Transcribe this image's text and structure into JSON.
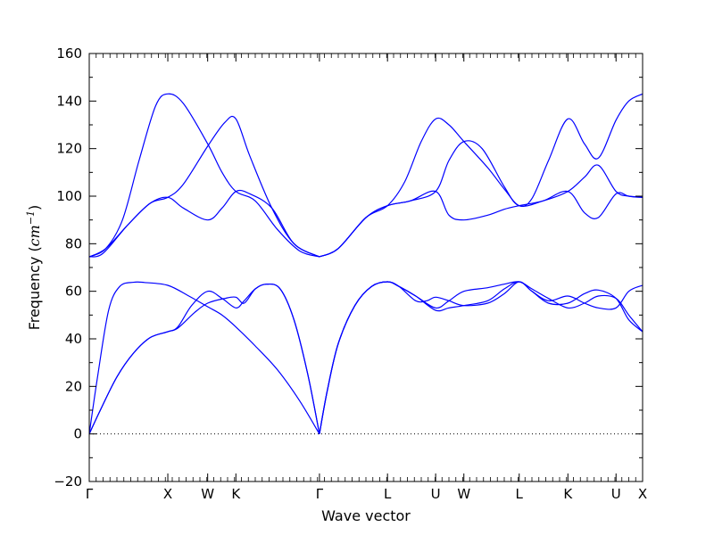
{
  "chart_data": {
    "type": "line",
    "title": "",
    "xlabel": "Wave vector",
    "ylabel_text": "Frequency (",
    "ylabel_unit": "cm",
    "ylabel_exp": "−1",
    "ylabel_close": ")",
    "ylim": [
      -20,
      160
    ],
    "y_ticks": [
      -20,
      0,
      20,
      40,
      60,
      80,
      100,
      120,
      140,
      160
    ],
    "grid": false,
    "zero_line": true,
    "xlim": [
      0,
      10
    ],
    "high_symmetry_points": [
      {
        "label": "Γ",
        "x": 0.0
      },
      {
        "label": "X",
        "x": 1.42
      },
      {
        "label": "W",
        "x": 2.14
      },
      {
        "label": "K",
        "x": 2.65
      },
      {
        "label": "Γ",
        "x": 4.16
      },
      {
        "label": "L",
        "x": 5.39
      },
      {
        "label": "U",
        "x": 6.26
      },
      {
        "label": "W",
        "x": 6.77
      },
      {
        "label": "L",
        "x": 7.77
      },
      {
        "label": "K",
        "x": 8.65
      },
      {
        "label": "U",
        "x": 9.52
      },
      {
        "label": "X",
        "x": 10.0
      }
    ],
    "series": [
      {
        "points": [
          [
            0,
            0
          ],
          [
            0.15,
            24
          ],
          [
            0.35,
            52
          ],
          [
            0.55,
            62
          ],
          [
            0.8,
            63.8
          ],
          [
            1.0,
            63.7
          ],
          [
            1.42,
            62.5
          ],
          [
            1.8,
            58
          ],
          [
            2.14,
            53.5
          ],
          [
            2.4,
            50
          ],
          [
            2.65,
            45
          ],
          [
            3.0,
            37
          ],
          [
            3.4,
            27
          ],
          [
            3.8,
            14
          ],
          [
            4.16,
            0
          ]
        ]
      },
      {
        "points": [
          [
            0,
            0
          ],
          [
            0.2,
            10
          ],
          [
            0.5,
            24
          ],
          [
            0.8,
            34
          ],
          [
            1.1,
            40.5
          ],
          [
            1.42,
            43
          ],
          [
            1.6,
            44.5
          ],
          [
            1.9,
            51
          ],
          [
            2.14,
            55
          ],
          [
            2.45,
            57
          ],
          [
            2.65,
            57.5
          ],
          [
            2.8,
            55
          ],
          [
            3.0,
            61
          ],
          [
            3.2,
            63
          ],
          [
            3.45,
            61
          ],
          [
            3.7,
            48
          ],
          [
            3.95,
            25
          ],
          [
            4.16,
            0
          ]
        ]
      },
      {
        "points": [
          [
            0,
            0
          ],
          [
            0.2,
            10
          ],
          [
            0.5,
            24
          ],
          [
            0.8,
            34
          ],
          [
            1.1,
            40.5
          ],
          [
            1.42,
            43
          ],
          [
            1.6,
            45
          ],
          [
            1.85,
            54
          ],
          [
            2.14,
            60
          ],
          [
            2.4,
            57
          ],
          [
            2.65,
            53
          ],
          [
            2.8,
            56
          ],
          [
            3.0,
            61
          ],
          [
            3.2,
            63
          ],
          [
            3.45,
            61
          ],
          [
            3.7,
            48
          ],
          [
            3.95,
            25
          ],
          [
            4.16,
            0
          ]
        ]
      },
      {
        "points": [
          [
            4.16,
            0
          ],
          [
            4.3,
            18
          ],
          [
            4.5,
            38
          ],
          [
            4.8,
            54
          ],
          [
            5.1,
            62
          ],
          [
            5.39,
            64
          ],
          [
            5.6,
            62
          ],
          [
            5.9,
            58
          ],
          [
            6.26,
            53
          ],
          [
            6.5,
            56
          ],
          [
            6.77,
            60
          ],
          [
            7.2,
            61.5
          ],
          [
            7.5,
            63
          ],
          [
            7.77,
            64
          ],
          [
            8.0,
            61
          ],
          [
            8.3,
            57
          ],
          [
            8.65,
            53
          ],
          [
            8.95,
            55
          ],
          [
            9.2,
            58
          ],
          [
            9.52,
            57
          ],
          [
            9.75,
            50
          ],
          [
            10.0,
            43
          ]
        ]
      },
      {
        "points": [
          [
            4.16,
            0
          ],
          [
            4.3,
            18
          ],
          [
            4.5,
            38
          ],
          [
            4.8,
            54
          ],
          [
            5.1,
            62
          ],
          [
            5.39,
            64
          ],
          [
            5.6,
            62
          ],
          [
            5.9,
            56
          ],
          [
            6.1,
            56
          ],
          [
            6.26,
            57.5
          ],
          [
            6.5,
            56
          ],
          [
            6.77,
            54
          ],
          [
            7.2,
            55
          ],
          [
            7.5,
            59
          ],
          [
            7.77,
            64
          ],
          [
            8.0,
            60
          ],
          [
            8.3,
            56
          ],
          [
            8.65,
            58
          ],
          [
            8.95,
            55
          ],
          [
            9.2,
            53
          ],
          [
            9.52,
            53
          ],
          [
            9.75,
            60
          ],
          [
            10.0,
            62.5
          ]
        ]
      },
      {
        "points": [
          [
            4.16,
            0
          ],
          [
            4.3,
            18
          ],
          [
            4.5,
            38
          ],
          [
            4.8,
            54
          ],
          [
            5.1,
            62
          ],
          [
            5.39,
            64
          ],
          [
            5.6,
            62
          ],
          [
            5.9,
            58
          ],
          [
            6.26,
            52
          ],
          [
            6.5,
            53
          ],
          [
            6.77,
            54
          ],
          [
            7.2,
            56
          ],
          [
            7.5,
            61
          ],
          [
            7.77,
            64
          ],
          [
            8.0,
            60
          ],
          [
            8.3,
            55
          ],
          [
            8.65,
            55
          ],
          [
            8.95,
            59
          ],
          [
            9.2,
            60.5
          ],
          [
            9.52,
            57
          ],
          [
            9.75,
            48
          ],
          [
            10.0,
            43
          ]
        ]
      },
      {
        "points": [
          [
            0,
            74.5
          ],
          [
            0.3,
            78
          ],
          [
            0.6,
            90
          ],
          [
            0.9,
            115
          ],
          [
            1.2,
            138
          ],
          [
            1.42,
            143
          ],
          [
            1.7,
            139
          ],
          [
            2.14,
            122
          ],
          [
            2.4,
            110
          ],
          [
            2.65,
            102
          ],
          [
            3.0,
            98
          ],
          [
            3.4,
            86
          ],
          [
            3.8,
            77
          ],
          [
            4.16,
            74.5
          ]
        ]
      },
      {
        "points": [
          [
            0,
            74.5
          ],
          [
            0.3,
            78
          ],
          [
            0.7,
            88
          ],
          [
            1.1,
            97
          ],
          [
            1.42,
            99.5
          ],
          [
            1.7,
            105
          ],
          [
            2.14,
            121
          ],
          [
            2.45,
            131
          ],
          [
            2.65,
            132.5
          ],
          [
            2.9,
            117
          ],
          [
            3.3,
            95
          ],
          [
            3.7,
            80
          ],
          [
            4.16,
            74.5
          ]
        ]
      },
      {
        "points": [
          [
            0,
            74.5
          ],
          [
            0.25,
            76
          ],
          [
            0.7,
            88
          ],
          [
            1.1,
            97
          ],
          [
            1.42,
            99.5
          ],
          [
            1.7,
            95
          ],
          [
            2.14,
            90
          ],
          [
            2.4,
            95
          ],
          [
            2.65,
            102
          ],
          [
            2.9,
            101
          ],
          [
            3.3,
            95
          ],
          [
            3.7,
            80
          ],
          [
            4.16,
            74.5
          ]
        ]
      },
      {
        "points": [
          [
            4.16,
            74.5
          ],
          [
            4.5,
            78
          ],
          [
            5.0,
            91
          ],
          [
            5.39,
            96
          ],
          [
            5.7,
            106
          ],
          [
            6.0,
            123
          ],
          [
            6.26,
            132.5
          ],
          [
            6.5,
            130
          ],
          [
            6.77,
            123
          ],
          [
            7.2,
            112
          ],
          [
            7.5,
            103
          ],
          [
            7.77,
            96
          ],
          [
            8.0,
            99
          ],
          [
            8.3,
            115
          ],
          [
            8.65,
            132.5
          ],
          [
            8.95,
            122
          ],
          [
            9.2,
            116
          ],
          [
            9.52,
            132
          ],
          [
            9.75,
            140
          ],
          [
            10.0,
            143
          ]
        ]
      },
      {
        "points": [
          [
            4.16,
            74.5
          ],
          [
            4.5,
            78
          ],
          [
            5.0,
            91
          ],
          [
            5.39,
            96
          ],
          [
            5.8,
            98
          ],
          [
            6.26,
            102
          ],
          [
            6.5,
            115
          ],
          [
            6.77,
            123
          ],
          [
            7.1,
            120
          ],
          [
            7.5,
            104
          ],
          [
            7.77,
            96
          ],
          [
            8.2,
            98
          ],
          [
            8.65,
            102
          ],
          [
            8.95,
            108
          ],
          [
            9.2,
            113
          ],
          [
            9.52,
            102
          ],
          [
            9.75,
            100
          ],
          [
            10.0,
            99.5
          ]
        ]
      },
      {
        "points": [
          [
            4.16,
            74.5
          ],
          [
            4.5,
            78
          ],
          [
            5.0,
            91
          ],
          [
            5.39,
            96
          ],
          [
            5.8,
            98
          ],
          [
            6.26,
            102
          ],
          [
            6.5,
            92
          ],
          [
            6.77,
            90
          ],
          [
            7.2,
            92
          ],
          [
            7.5,
            94.5
          ],
          [
            7.77,
            96
          ],
          [
            8.2,
            98
          ],
          [
            8.65,
            102
          ],
          [
            8.95,
            93
          ],
          [
            9.2,
            91
          ],
          [
            9.52,
            101
          ],
          [
            9.75,
            100
          ],
          [
            10.0,
            99.5
          ]
        ]
      }
    ]
  }
}
